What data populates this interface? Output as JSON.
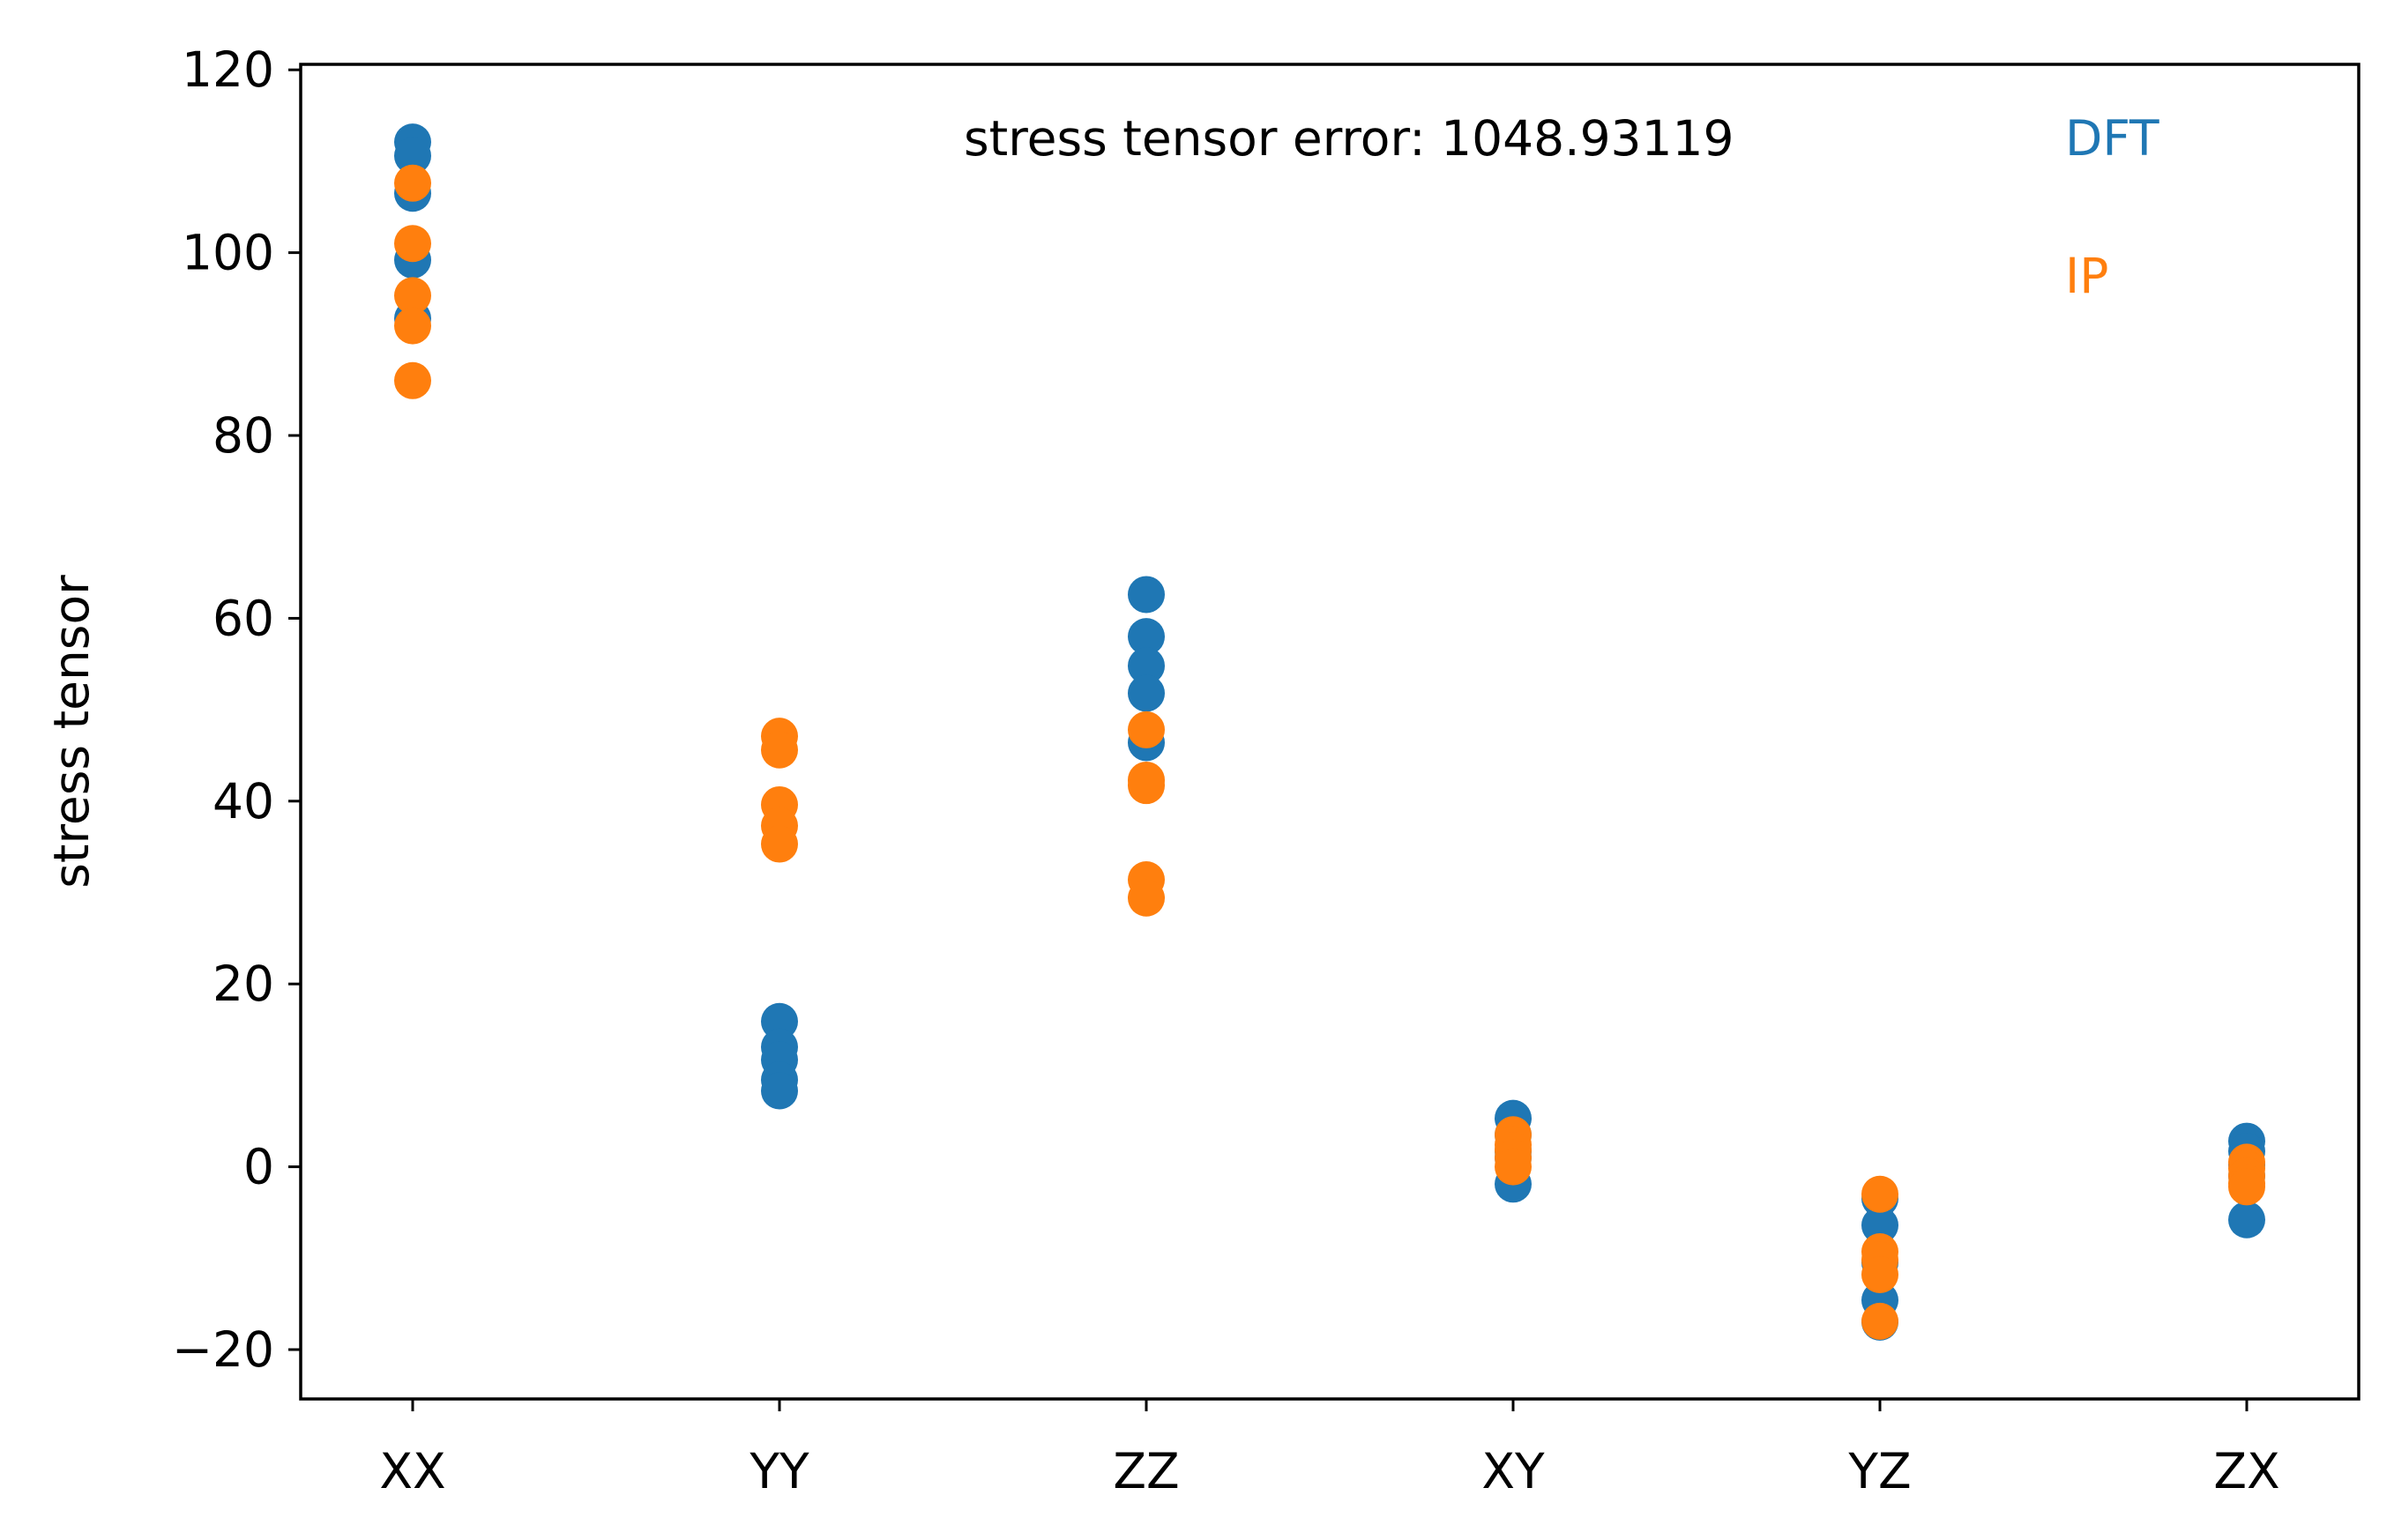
{
  "chart_data": {
    "type": "scatter",
    "ylabel": "stress tensor",
    "xlabel": "",
    "ylim": [
      -25.4,
      120.6
    ],
    "categories": [
      "XX",
      "YY",
      "ZZ",
      "XY",
      "YZ",
      "ZX"
    ],
    "yticks": [
      120,
      100,
      80,
      60,
      40,
      20,
      0,
      -20
    ],
    "ytick_labels": [
      "120",
      "100",
      "80",
      "60",
      "40",
      "20",
      "0",
      "−20"
    ],
    "annotation": "stress tensor error: 1048.93119",
    "grid": false,
    "legend_position": "top-right",
    "series": [
      {
        "name": "DFT",
        "color": "#1f77b4",
        "values": [
          [
            112.1,
            110.6,
            106.5,
            99.2,
            92.8
          ],
          [
            15.9,
            13.1,
            11.7,
            9.5,
            8.3
          ],
          [
            62.6,
            58.0,
            54.8,
            51.8,
            46.4
          ],
          [
            5.3,
            3.5,
            1.7,
            1.0,
            -1.9
          ],
          [
            -3.5,
            -6.4,
            -10.5,
            -14.6,
            -17.0
          ],
          [
            2.8,
            1.7,
            0.2,
            -1.0,
            -5.8
          ]
        ]
      },
      {
        "name": "IP",
        "color": "#ff7f0e",
        "values": [
          [
            107.6,
            101.0,
            95.3,
            92.0,
            86.0
          ],
          [
            47.1,
            45.6,
            39.6,
            37.3,
            35.3
          ],
          [
            47.8,
            42.3,
            41.7,
            31.4,
            29.4
          ],
          [
            3.5,
            2.4,
            1.8,
            1.0,
            0.0
          ],
          [
            -3.0,
            -9.3,
            -10.2,
            -11.8,
            -16.9
          ],
          [
            0.5,
            -0.2,
            -1.0,
            -1.8,
            -2.2
          ]
        ]
      }
    ]
  }
}
